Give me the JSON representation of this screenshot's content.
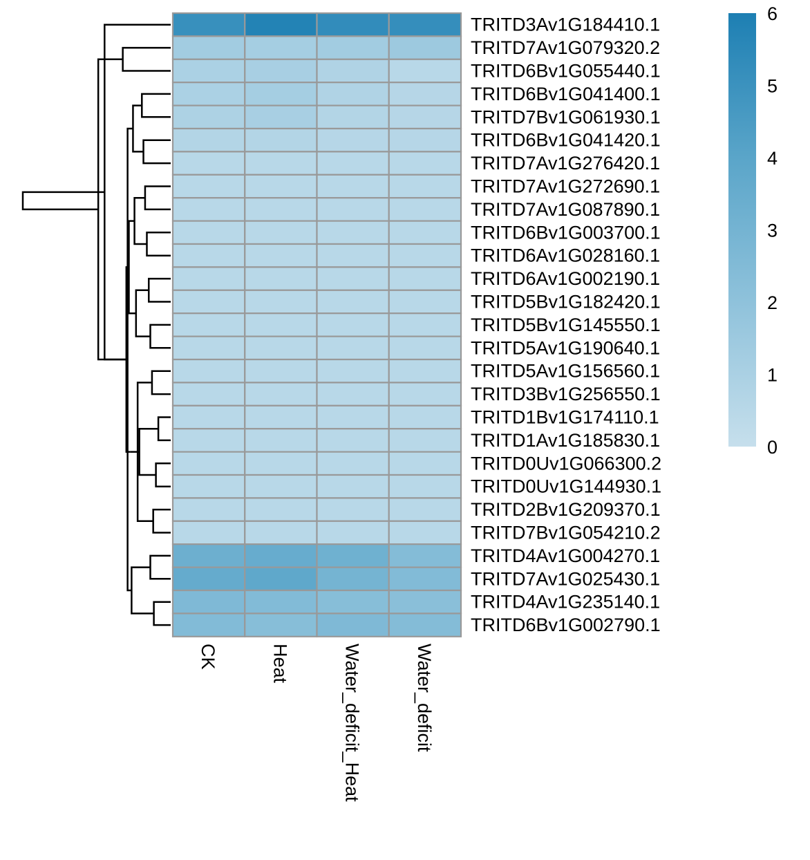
{
  "chart_data": {
    "type": "heatmap",
    "title": "",
    "xlabel": "",
    "ylabel": "",
    "columns": [
      "CK",
      "Heat",
      "Water_deficit_Heat",
      "Water_deficit"
    ],
    "rows": [
      "TRITD3Av1G184410.1",
      "TRITD7Av1G079320.2",
      "TRITD6Bv1G055440.1",
      "TRITD6Bv1G041400.1",
      "TRITD7Bv1G061930.1",
      "TRITD6Bv1G041420.1",
      "TRITD7Av1G276420.1",
      "TRITD7Av1G272690.1",
      "TRITD7Av1G087890.1",
      "TRITD6Bv1G003700.1",
      "TRITD6Av1G028160.1",
      "TRITD6Av1G002190.1",
      "TRITD5Bv1G182420.1",
      "TRITD5Bv1G145550.1",
      "TRITD5Av1G190640.1",
      "TRITD5Av1G156560.1",
      "TRITD3Bv1G256550.1",
      "TRITD1Bv1G174110.1",
      "TRITD1Av1G185830.1",
      "TRITD0Uv1G066300.2",
      "TRITD0Uv1G144930.1",
      "TRITD2Bv1G209370.1",
      "TRITD7Bv1G054210.2",
      "TRITD4Av1G004270.1",
      "TRITD7Av1G025430.1",
      "TRITD4Av1G235140.1",
      "TRITD6Bv1G002790.1"
    ],
    "values": [
      [
        5.1,
        5.8,
        5.3,
        5.2
      ],
      [
        1.3,
        1.2,
        1.3,
        1.5
      ],
      [
        1.0,
        1.1,
        0.8,
        0.5
      ],
      [
        1.0,
        1.2,
        0.8,
        0.6
      ],
      [
        0.9,
        1.1,
        0.7,
        0.6
      ],
      [
        0.7,
        0.7,
        0.6,
        0.6
      ],
      [
        0.5,
        0.5,
        0.5,
        0.5
      ],
      [
        0.5,
        0.5,
        0.5,
        0.5
      ],
      [
        0.5,
        0.5,
        0.5,
        0.5
      ],
      [
        0.5,
        0.5,
        0.5,
        0.5
      ],
      [
        0.5,
        0.5,
        0.5,
        0.5
      ],
      [
        0.5,
        0.5,
        0.5,
        0.5
      ],
      [
        0.5,
        0.5,
        0.5,
        0.5
      ],
      [
        0.5,
        0.5,
        0.5,
        0.5
      ],
      [
        0.5,
        0.5,
        0.5,
        0.5
      ],
      [
        0.5,
        0.5,
        0.5,
        0.5
      ],
      [
        0.5,
        0.5,
        0.5,
        0.5
      ],
      [
        0.5,
        0.5,
        0.5,
        0.5
      ],
      [
        0.5,
        0.5,
        0.5,
        0.5
      ],
      [
        0.5,
        0.5,
        0.5,
        0.5
      ],
      [
        0.5,
        0.5,
        0.5,
        0.5
      ],
      [
        0.5,
        0.5,
        0.5,
        0.5
      ],
      [
        0.5,
        0.5,
        0.5,
        0.5
      ],
      [
        3.3,
        3.5,
        3.2,
        2.4
      ],
      [
        3.6,
        3.8,
        3.0,
        2.5
      ],
      [
        2.6,
        2.5,
        2.3,
        2.2
      ],
      [
        2.5,
        2.3,
        2.6,
        2.4
      ]
    ],
    "color_scale": {
      "min": 0,
      "max": 6,
      "ticks": [
        0,
        1,
        2,
        3,
        4,
        5,
        6
      ],
      "colors": [
        "#c6dfec",
        "#8fc2db",
        "#5aa5c9",
        "#1d7fb3"
      ],
      "cell_border": "#999999"
    },
    "dendrogram": {
      "side": "left",
      "order": [
        0,
        1,
        2,
        3,
        4,
        5,
        6,
        7,
        8,
        9,
        10,
        11,
        12,
        13,
        14,
        15,
        16,
        17,
        18,
        19,
        20,
        21,
        22,
        23,
        24,
        25,
        26
      ],
      "merges": [
        [
          [],
          [],
          0.7
        ],
        [
          [],
          [],
          1.0
        ],
        [
          [],
          [],
          1.4
        ],
        [
          [],
          [],
          1.6
        ],
        [
          [],
          [],
          1.3
        ],
        [
          [],
          [],
          1.9
        ],
        [
          [],
          [],
          3.4
        ],
        [
          [],
          [],
          4.0
        ],
        [
          [],
          [],
          4.5
        ],
        [
          [],
          [],
          5.0
        ],
        [
          [],
          [],
          5.5
        ],
        [
          [],
          [],
          6.0
        ],
        [
          [],
          [],
          6.5
        ],
        [
          [],
          [],
          7.0
        ],
        [
          [],
          [],
          7.5
        ],
        [
          [],
          [],
          8.0
        ],
        [
          [],
          [],
          8.5
        ],
        [
          [],
          [],
          9.0
        ],
        [
          [],
          [],
          9.5
        ],
        [
          [],
          [],
          10.0
        ],
        [
          [],
          [],
          10.5
        ],
        [
          [],
          [],
          20.0
        ],
        [
          [],
          [],
          24.0
        ],
        [
          [],
          [],
          100.0
        ]
      ]
    },
    "legend": {
      "placement": "right"
    }
  }
}
